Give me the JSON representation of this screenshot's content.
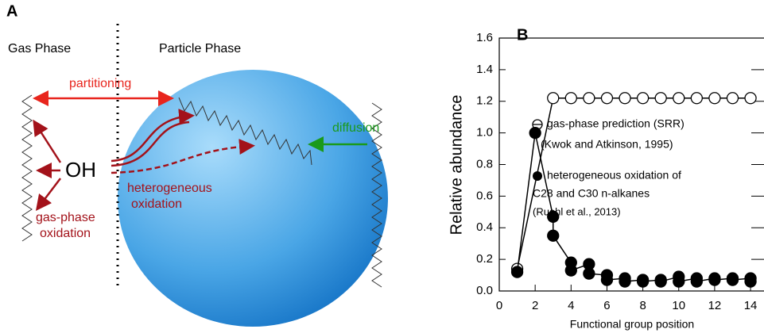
{
  "panel_a": {
    "label": "A",
    "gas_phase": "Gas Phase",
    "particle_phase": "Particle Phase",
    "partitioning": "partitioning",
    "oh": "OH",
    "heterogeneous_oxidation": [
      "heterogeneous",
      "oxidation"
    ],
    "gas_phase_oxidation": [
      "gas-phase",
      "oxidation"
    ],
    "diffusion": "diffusion"
  },
  "chart_data": {
    "type": "scatter",
    "panel_label": "B",
    "x_label": "Functional group position",
    "y_label": "Relative abundance",
    "xlim": [
      0,
      14.75
    ],
    "ylim": [
      0,
      1.6
    ],
    "xticks": [
      0,
      2,
      4,
      6,
      8,
      10,
      12,
      14
    ],
    "yticks": [
      {
        "value": 0,
        "label": "0.0"
      },
      0.2,
      0.4,
      0.6,
      0.8,
      {
        "value": 1,
        "label": "1.0"
      },
      1.2,
      1.4,
      1.6
    ],
    "series": [
      {
        "name": "gas-phase prediction (SRR)",
        "source": "(Kwok and Atkinson, 1995)",
        "marker": "open",
        "color": "#000000",
        "x": [
          1,
          3,
          4,
          5,
          6,
          7,
          8,
          9,
          10,
          11,
          12,
          13,
          14
        ],
        "values": [
          0.14,
          1.22,
          1.22,
          1.22,
          1.22,
          1.22,
          1.22,
          1.22,
          1.22,
          1.22,
          1.22,
          1.22,
          1.22
        ]
      },
      {
        "name": "heterogeneous oxidation of",
        "name_line2": "C28 and C30 n-alkanes",
        "source": "(Ruehl et al., 2013)",
        "marker": "filled",
        "color": "#000000",
        "x": [
          1,
          2,
          3,
          3,
          4,
          4,
          5,
          5,
          6,
          6,
          7,
          7,
          8,
          8,
          9,
          9,
          10,
          10,
          11,
          11,
          12,
          12,
          13,
          13,
          14,
          14
        ],
        "values": [
          0.12,
          1.0,
          0.47,
          0.35,
          0.18,
          0.13,
          0.17,
          0.11,
          0.1,
          0.07,
          0.08,
          0.06,
          0.07,
          0.06,
          0.07,
          0.06,
          0.09,
          0.06,
          0.08,
          0.06,
          0.08,
          0.07,
          0.08,
          0.07,
          0.08,
          0.06
        ]
      }
    ]
  }
}
